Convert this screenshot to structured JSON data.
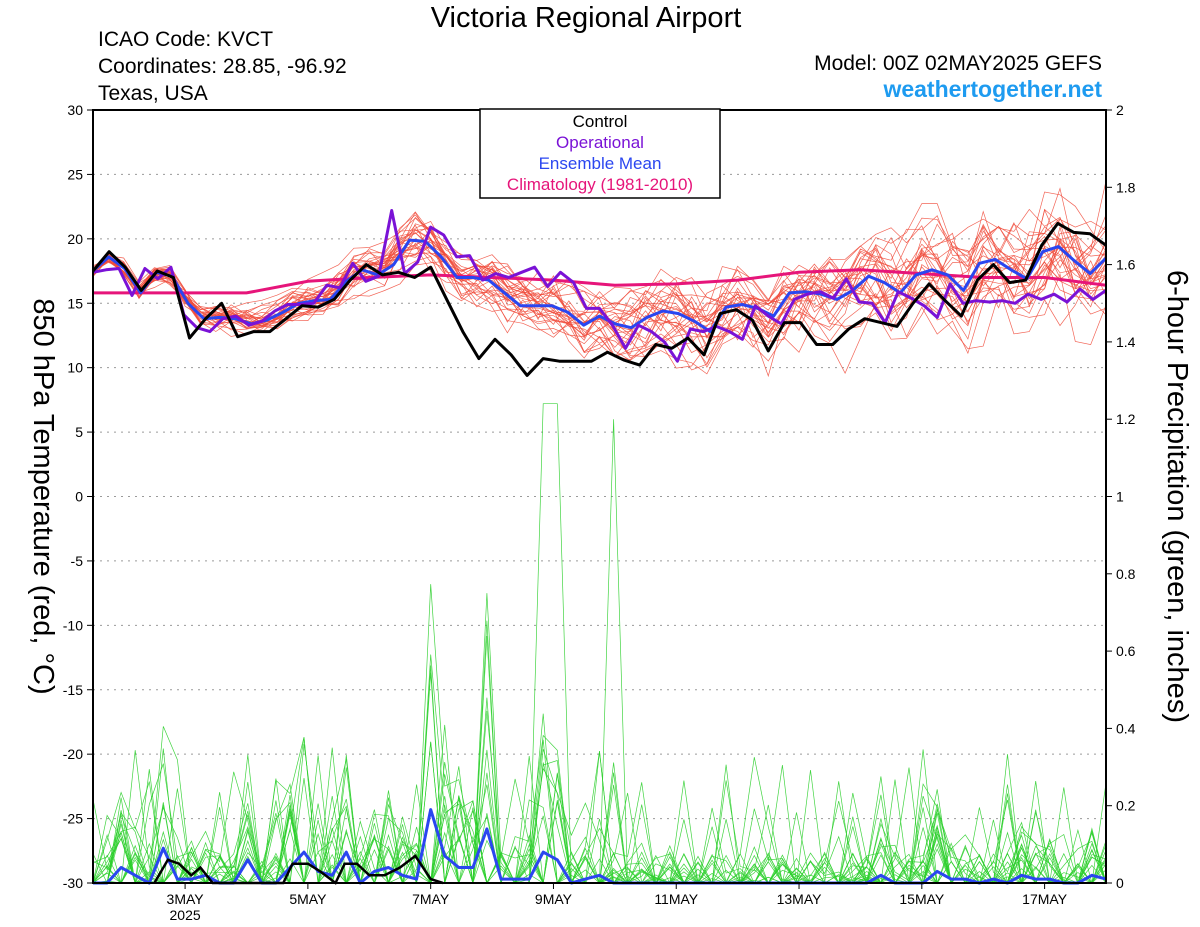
{
  "header": {
    "title": "Victoria Regional Airport",
    "icao": "ICAO Code: KVCT",
    "coordinates": "Coordinates: 28.85, -96.92",
    "region": "Texas, USA",
    "model": "Model: 00Z 02MAY2025 GEFS",
    "website": "weathertogether.net",
    "website_color": "#1e9bf0"
  },
  "chart_data": {
    "type": "line",
    "ylabel_left": "850 hPa Temperature (red, °C)",
    "ylabel_right": "6-hour Precipitation (green, inches)",
    "y_left_range": [
      -30,
      30
    ],
    "y_left_ticks": [
      "30",
      "25",
      "20",
      "15",
      "10",
      "5",
      "0",
      "-5",
      "-10",
      "-15",
      "-20",
      "-25",
      "-30"
    ],
    "y_right_range": [
      0,
      2
    ],
    "y_right_ticks": [
      "2",
      "1.8",
      "1.6",
      "1.4",
      "1.2",
      "1",
      "0.8",
      "0.6",
      "0.4",
      "0.2",
      "0"
    ],
    "x_range_days": [
      1.5,
      18.0
    ],
    "x_ticks": [
      {
        "day": 3,
        "label": "3MAY",
        "sublabel": "2025"
      },
      {
        "day": 5,
        "label": "5MAY"
      },
      {
        "day": 7,
        "label": "7MAY"
      },
      {
        "day": 9,
        "label": "9MAY"
      },
      {
        "day": 11,
        "label": "11MAY"
      },
      {
        "day": 13,
        "label": "13MAY"
      },
      {
        "day": 15,
        "label": "15MAY"
      },
      {
        "day": 17,
        "label": "17MAY"
      }
    ],
    "grid": "horizontal dotted",
    "legend": {
      "placement": "top-center",
      "entries": [
        {
          "label": "Control",
          "color": "#000000"
        },
        {
          "label": "Operational",
          "color": "#7a12d6"
        },
        {
          "label": "Ensemble Mean",
          "color": "#2a46f0"
        },
        {
          "label": "Climatology (1981-2010)",
          "color": "#e6157a"
        }
      ]
    },
    "temperature": {
      "control": [
        17.5,
        19.0,
        17.8,
        16.0,
        17.5,
        17.0,
        12.3,
        13.8,
        15.0,
        12.4,
        12.8,
        12.8,
        13.8,
        14.8,
        14.7,
        15.3,
        16.8,
        18.0,
        17.2,
        17.4,
        17.0,
        17.8,
        15.3,
        12.8,
        10.7,
        12.2,
        11.0,
        9.4,
        10.7,
        10.5,
        10.5,
        10.5,
        11.2,
        10.6,
        10.2,
        11.8,
        11.5,
        12.3,
        11.0,
        14.2,
        14.5,
        13.7,
        11.3,
        13.5,
        13.5,
        11.8,
        11.8,
        13.0,
        13.8,
        13.5,
        13.2,
        15.0,
        16.5,
        15.2,
        14.0,
        16.8,
        18.0,
        16.6,
        16.8,
        19.5,
        21.2,
        20.5,
        20.4,
        19.5
      ],
      "operational": [
        17.4,
        17.6,
        17.7,
        15.6,
        17.7,
        16.9,
        17.8,
        14.1,
        13.1,
        12.8,
        13.8,
        14.0,
        13.3,
        13.6,
        14.4,
        14.9,
        14.9,
        15.0,
        16.4,
        16.2,
        18.1,
        16.7,
        17.1,
        22.2,
        17.3,
        18.2,
        20.9,
        20.3,
        18.6,
        18.7,
        16.8,
        17.3,
        17.0,
        17.4,
        17.8,
        16.3,
        17.4,
        16.6,
        14.6,
        14.6,
        13.3,
        11.5,
        13.3,
        12.8,
        12.0,
        10.5,
        13.0,
        12.8,
        13.2,
        12.8,
        12.2,
        14.8,
        14.0,
        13.4,
        15.3,
        15.7,
        15.9,
        15.4,
        16.9,
        15.1,
        15.0,
        13.5,
        15.9,
        15.4,
        14.8,
        13.9,
        16.5,
        15.0,
        15.2,
        15.1,
        15.2,
        15.0,
        15.7,
        15.3,
        15.7,
        15.1,
        16.1,
        15.3,
        16.0
      ],
      "mean": [
        17.5,
        18.6,
        17.7,
        15.8,
        17.4,
        17.1,
        15.0,
        13.8,
        13.9,
        13.8,
        13.4,
        13.7,
        14.3,
        15.0,
        15.2,
        15.3,
        16.7,
        17.6,
        17.2,
        18.0,
        19.9,
        19.8,
        18.6,
        17.0,
        17.0,
        16.8,
        15.8,
        14.8,
        14.8,
        14.8,
        14.3,
        13.3,
        14.0,
        13.4,
        13.1,
        13.9,
        14.4,
        14.2,
        13.6,
        12.8,
        14.7,
        14.9,
        14.6,
        14.0,
        15.8,
        15.9,
        15.7,
        15.3,
        16.0,
        17.1,
        16.6,
        15.8,
        17.2,
        17.6,
        17.2,
        16.0,
        18.1,
        18.4,
        17.6,
        16.9,
        19.0,
        19.4,
        18.3,
        17.3,
        18.5
      ],
      "climatology": [
        [
          1.5,
          15.8
        ],
        [
          3.0,
          15.8
        ],
        [
          4.0,
          15.8
        ],
        [
          5.0,
          16.7
        ],
        [
          6.0,
          17.0
        ],
        [
          7.0,
          17.2
        ],
        [
          8.0,
          17.0
        ],
        [
          9.0,
          16.8
        ],
        [
          10.0,
          16.4
        ],
        [
          11.0,
          16.5
        ],
        [
          12.0,
          16.8
        ],
        [
          13.0,
          17.4
        ],
        [
          14.0,
          17.6
        ],
        [
          15.0,
          17.3
        ],
        [
          16.0,
          17.0
        ],
        [
          17.0,
          17.0
        ],
        [
          18.0,
          16.4
        ]
      ],
      "members_count": 30
    },
    "precipitation": {
      "control_points": [
        [
          2.5,
          0.0
        ],
        [
          2.72,
          0.06
        ],
        [
          2.9,
          0.05
        ],
        [
          3.1,
          0.02
        ],
        [
          3.25,
          0.04
        ],
        [
          3.45,
          0.0
        ],
        [
          4.6,
          0.0
        ],
        [
          4.75,
          0.05
        ],
        [
          5.0,
          0.05
        ],
        [
          5.2,
          0.03
        ],
        [
          5.45,
          0.0
        ],
        [
          5.6,
          0.05
        ],
        [
          5.8,
          0.05
        ],
        [
          6.0,
          0.02
        ],
        [
          6.25,
          0.02
        ],
        [
          6.5,
          0.04
        ],
        [
          6.75,
          0.07
        ],
        [
          7.0,
          0.01
        ],
        [
          7.2,
          0.0
        ]
      ],
      "mean": [
        0.0,
        0.0,
        0.04,
        0.02,
        0.0,
        0.09,
        0.01,
        0.01,
        0.02,
        0.0,
        0.0,
        0.06,
        0.0,
        0.0,
        0.04,
        0.08,
        0.03,
        0.02,
        0.08,
        0.0,
        0.03,
        0.04,
        0.02,
        0.01,
        0.19,
        0.07,
        0.04,
        0.04,
        0.14,
        0.01,
        0.01,
        0.01,
        0.08,
        0.06,
        0.0,
        0.01,
        0.02,
        0.0,
        0.0,
        0.0,
        0.0,
        0.0,
        0.0,
        0.0,
        0.0,
        0.0,
        0.0,
        0.0,
        0.0,
        0.0,
        0.0,
        0.0,
        0.0,
        0.0,
        0.0,
        0.0,
        0.02,
        0.0,
        0.0,
        0.0,
        0.03,
        0.01,
        0.01,
        0.0,
        0.01,
        0.0,
        0.02,
        0.01,
        0.01,
        0.0,
        0.0,
        0.02,
        0.01
      ],
      "members_count": 30,
      "member_max": 1.24
    }
  }
}
